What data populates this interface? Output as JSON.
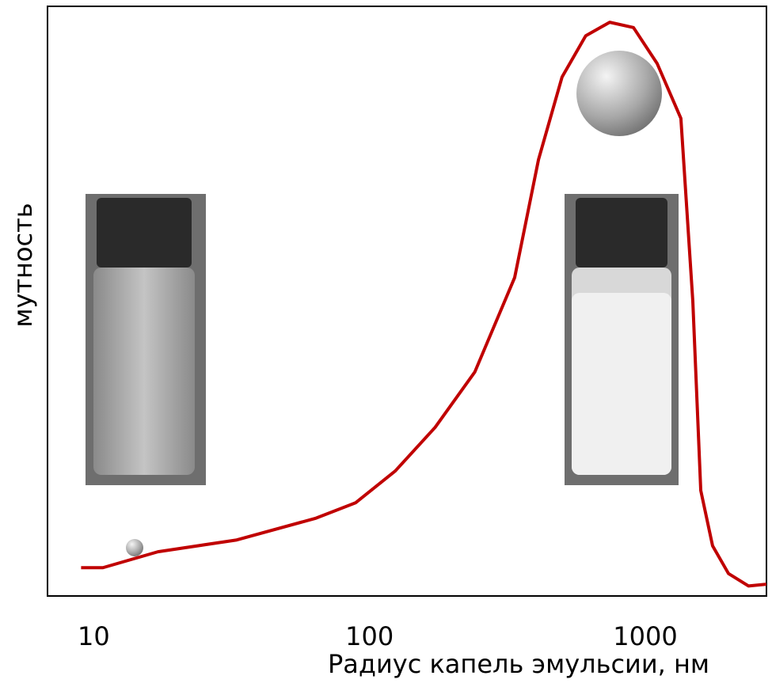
{
  "chart_data": {
    "type": "line",
    "xlabel": "Радиус капель эмульсии, нм",
    "ylabel": "мутность",
    "xscale": "log",
    "xlim": [
      6.8,
      2750
    ],
    "xticks": [
      10,
      100,
      1000
    ],
    "ylim": [
      0,
      100
    ],
    "grid": false,
    "series": [
      {
        "color": "#c00000",
        "x": [
          9.0,
          10.8,
          17.1,
          33,
          64,
          89,
          124,
          173,
          241,
          336,
          410,
          499,
          608,
          743,
          906,
          1104,
          1346,
          1487,
          1589,
          1754,
          2003,
          2366,
          2750
        ],
        "values": [
          4.8,
          4.8,
          7.5,
          9.5,
          13.2,
          15.8,
          21.2,
          28.6,
          38,
          54,
          74,
          88,
          95,
          97.3,
          96.4,
          90.3,
          81,
          50,
          17.9,
          8.5,
          3.8,
          1.7,
          2.0
        ]
      }
    ]
  }
}
